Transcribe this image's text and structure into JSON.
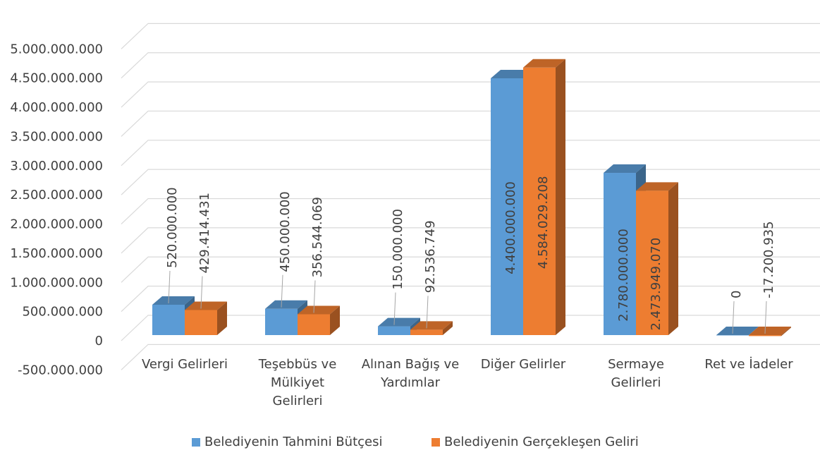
{
  "chart_data": {
    "type": "bar3d",
    "categories": [
      "Vergi Gelirleri",
      "Teşebbüs ve Mülkiyet Gelirleri",
      "Alınan Bağış ve Yardımlar",
      "Diğer Gelirler",
      "Sermaye Gelirleri",
      "Ret ve İadeler"
    ],
    "series": [
      {
        "name": "Belediyenin Tahmini Bütçesi",
        "color": "#5b9bd5",
        "values": [
          520000000,
          450000000,
          150000000,
          4400000000,
          2780000000,
          0
        ],
        "value_labels": [
          "520.000.000",
          "450.000.000",
          "150.000.000",
          "4.400.000.000",
          "2.780.000.000",
          "0"
        ]
      },
      {
        "name": "Belediyenin Gerçekleşen Geliri",
        "color": "#ed7d31",
        "values": [
          429414431,
          356544069,
          92536749,
          4584029208,
          2473949070,
          -17200935
        ],
        "value_labels": [
          "429.414.431",
          "356.544.069",
          "92.536.749",
          "4.584.029.208",
          "2.473.949.070",
          "-17.200.935"
        ]
      }
    ],
    "ylim": [
      -500000000,
      5000000000
    ],
    "yticks": [
      {
        "value": -500000000,
        "label": "-500.000.000"
      },
      0,
      {
        "value": 500000000,
        "label": "500.000.000"
      },
      {
        "value": 1000000000,
        "label": "1.000.000.000"
      },
      {
        "value": 1500000000,
        "label": "1.500.000.000"
      },
      {
        "value": 2000000000,
        "label": "2.000.000.000"
      },
      {
        "value": 2500000000,
        "label": "2.500.000.000"
      },
      {
        "value": 3000000000,
        "label": "3.000.000.000"
      },
      {
        "value": 3500000000,
        "label": "3.500.000.000"
      },
      {
        "value": 4000000000,
        "label": "4.000.000.000"
      },
      {
        "value": 4500000000,
        "label": "4.500.000.000"
      },
      {
        "value": 5000000000,
        "label": "5.000.000.000"
      }
    ],
    "grid": true,
    "legend": "bottom"
  }
}
